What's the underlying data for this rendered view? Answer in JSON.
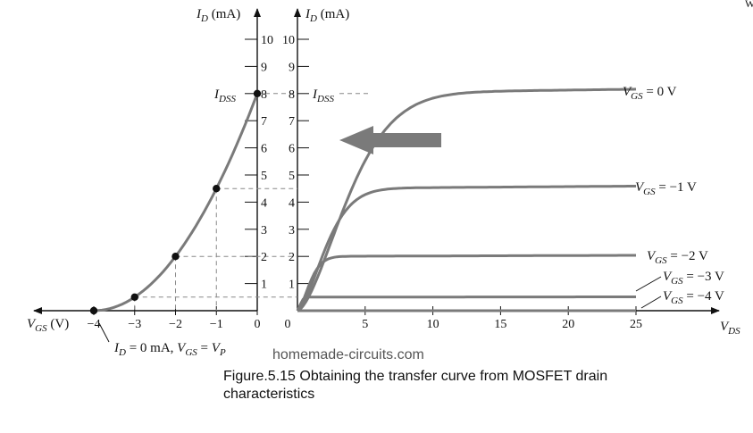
{
  "corner_text": "W",
  "watermark": "homemade-circuits.com",
  "caption": {
    "line1": "Figure.5.15 Obtaining the transfer curve from MOSFET drain",
    "line2": "characteristics"
  },
  "chart_data": [
    {
      "type": "line",
      "title": "",
      "xlabel": "VGS (V)",
      "ylabel": "ID (mA)",
      "xlim": [
        -4,
        0
      ],
      "ylim": [
        0,
        10
      ],
      "x_ticks": [
        "-4",
        "-3",
        "-2",
        "-1",
        "0"
      ],
      "y_ticks": [
        "1",
        "2",
        "3",
        "4",
        "5",
        "6",
        "7",
        "8",
        "9",
        "10"
      ],
      "idss_label": "IDSS",
      "points": [
        {
          "x": -4,
          "y": 0
        },
        {
          "x": -3,
          "y": 0.5
        },
        {
          "x": -2,
          "y": 2
        },
        {
          "x": -1,
          "y": 4.5
        },
        {
          "x": 0,
          "y": 8
        }
      ],
      "annotation": "ID = 0 mA, VGS = VP"
    },
    {
      "type": "line",
      "title": "",
      "xlabel": "VDS",
      "ylabel": "ID (mA)",
      "xlim": [
        0,
        25
      ],
      "ylim": [
        0,
        10
      ],
      "origin_label": "0",
      "x_ticks": [
        "5",
        "10",
        "15",
        "20",
        "25"
      ],
      "y_ticks": [
        "1",
        "2",
        "3",
        "4",
        "5",
        "6",
        "7",
        "8",
        "9",
        "10"
      ],
      "idss_label": "IDSS",
      "series": [
        {
          "name": "VGS = 0 V",
          "saturation": 8
        },
        {
          "name": "VGS = −1 V",
          "saturation": 4.5
        },
        {
          "name": "VGS = −2 V",
          "saturation": 2
        },
        {
          "name": "VGS = −3 V",
          "saturation": 0.5
        },
        {
          "name": "VGS = −4 V",
          "saturation": 0
        }
      ]
    }
  ]
}
